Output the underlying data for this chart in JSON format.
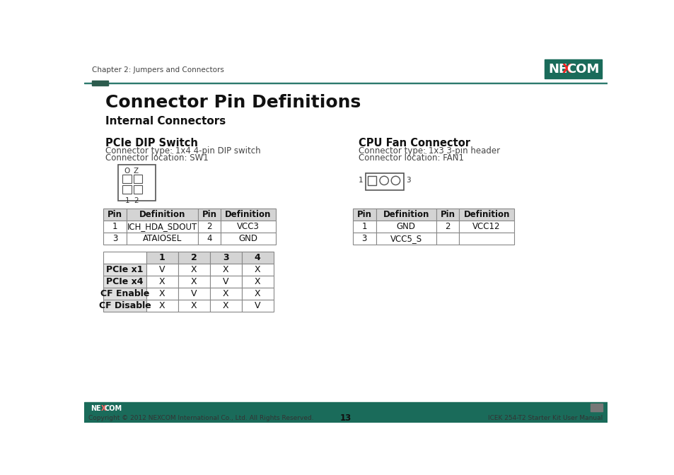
{
  "page_header_text": "Chapter 2: Jumpers and Connectors",
  "main_title": "Connector Pin Definitions",
  "subtitle": "Internal Connectors",
  "nexcom_logo_bg": "#1a6b5a",
  "teal_line_color": "#2d7a6e",
  "dark_green_square_color": "#2d5c4e",
  "section1_title": "PCIe DIP Switch",
  "section1_type": "Connector type: 1x4 4-pin DIP switch",
  "section1_loc": "Connector location: SW1",
  "section2_title": "CPU Fan Connector",
  "section2_type": "Connector type: 1x3 3-pin header",
  "section2_loc": "Connector location: FAN1",
  "table1_headers": [
    "Pin",
    "Definition",
    "Pin",
    "Definition"
  ],
  "table1_rows": [
    [
      "1",
      "ICH_HDA_SDOUT",
      "2",
      "VCC3"
    ],
    [
      "3",
      "ATAIOSEL",
      "4",
      "GND"
    ]
  ],
  "table2_headers": [
    "Pin",
    "Definition",
    "Pin",
    "Definition"
  ],
  "table2_rows": [
    [
      "1",
      "GND",
      "2",
      "VCC12"
    ],
    [
      "3",
      "VCC5_S",
      "",
      ""
    ]
  ],
  "switch_table_headers": [
    "",
    "1",
    "2",
    "3",
    "4"
  ],
  "switch_table_rows": [
    [
      "PCIe x1",
      "V",
      "X",
      "X",
      "X"
    ],
    [
      "PCIe x4",
      "X",
      "X",
      "V",
      "X"
    ],
    [
      "CF Enable",
      "X",
      "V",
      "X",
      "X"
    ],
    [
      "CF Disable",
      "X",
      "X",
      "X",
      "V"
    ]
  ],
  "footer_bg": "#1a6b5a",
  "footer_text_left": "Copyright © 2012 NEXCOM International Co., Ltd. All Rights Reserved.",
  "footer_page_num": "13",
  "footer_text_right": "ICEK 254-T2 Starter Kit User Manual",
  "bg_color": "#ffffff",
  "table_header_bg": "#d4d4d4",
  "table_border_color": "#888888",
  "left_col_bg": "#e0e0e0"
}
